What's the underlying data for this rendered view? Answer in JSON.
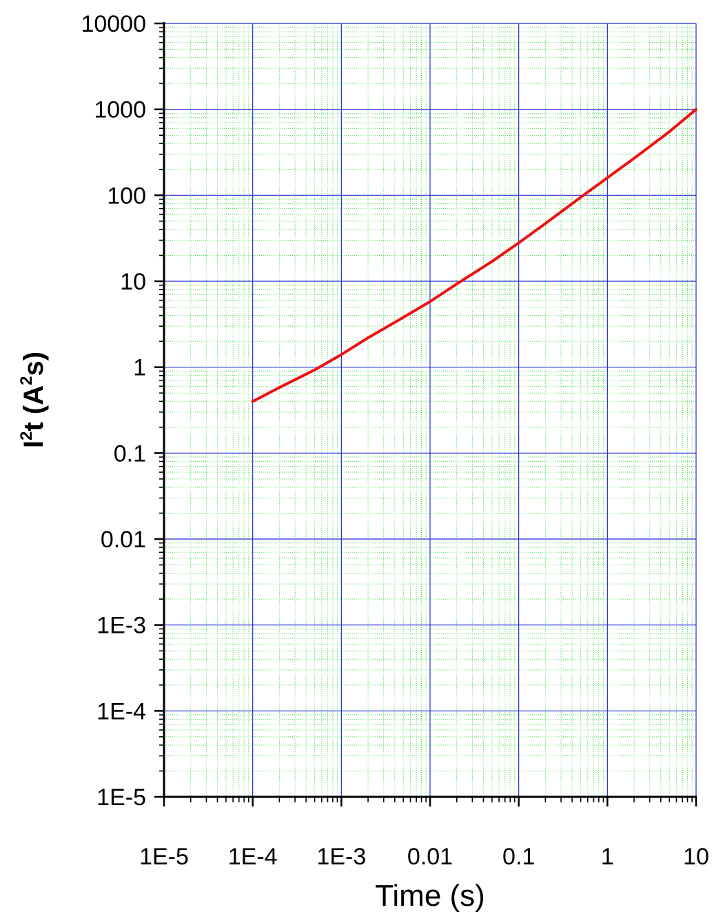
{
  "colors": {
    "major_grid": "#1f2fd6",
    "minor_grid": "#55dd55",
    "series": "#ee1111",
    "axis": "#000000"
  },
  "chart_data": {
    "type": "line",
    "xlabel": "Time (s)",
    "ylabel": {
      "base": "I",
      "sup1": "2",
      "mid": "t (A",
      "sup2": "2",
      "end": "s)"
    },
    "x_scale": "log",
    "y_scale": "log",
    "xlim": [
      1e-05,
      10
    ],
    "ylim": [
      1e-05,
      10000
    ],
    "x_ticks": [
      {
        "value": 1e-05,
        "label": "1E-5"
      },
      {
        "value": 0.0001,
        "label": "1E-4"
      },
      {
        "value": 0.001,
        "label": "1E-3"
      },
      {
        "value": 0.01,
        "label": "0.01"
      },
      {
        "value": 0.1,
        "label": "0.1"
      },
      {
        "value": 1,
        "label": "1"
      },
      {
        "value": 10,
        "label": "10"
      }
    ],
    "y_ticks": [
      {
        "value": 1e-05,
        "label": "1E-5"
      },
      {
        "value": 0.0001,
        "label": "1E-4"
      },
      {
        "value": 0.001,
        "label": "1E-3"
      },
      {
        "value": 0.01,
        "label": "0.01"
      },
      {
        "value": 0.1,
        "label": "0.1"
      },
      {
        "value": 1,
        "label": "1"
      },
      {
        "value": 10,
        "label": "10"
      },
      {
        "value": 100,
        "label": "100"
      },
      {
        "value": 1000,
        "label": "1000"
      },
      {
        "value": 10000,
        "label": "10000"
      }
    ],
    "grid": {
      "major": true,
      "minor": true
    },
    "legend": "none",
    "series": [
      {
        "x": [
          0.0001,
          0.0002,
          0.0005,
          0.001,
          0.002,
          0.005,
          0.01,
          0.02,
          0.05,
          0.1,
          0.2,
          0.5,
          1,
          2,
          5,
          10
        ],
        "y": [
          0.4,
          0.58,
          0.93,
          1.4,
          2.2,
          3.8,
          5.8,
          9.3,
          17,
          28,
          47,
          95,
          160,
          270,
          550,
          1000
        ]
      }
    ]
  }
}
